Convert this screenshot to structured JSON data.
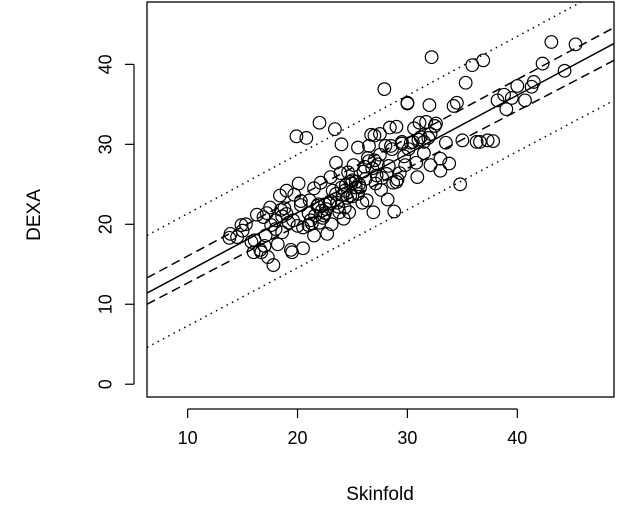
{
  "chart_data": {
    "type": "scatter",
    "title": "",
    "xlabel": "Skinfold",
    "ylabel": "DEXA",
    "xlim": [
      6.3,
      48.8
    ],
    "ylim": [
      -1.6,
      47.8
    ],
    "x_ticks": [
      {
        "value": 10,
        "label": "10"
      },
      {
        "value": 20,
        "label": "20"
      },
      {
        "value": 30,
        "label": "30"
      },
      {
        "value": 40,
        "label": "40"
      }
    ],
    "y_ticks": [
      {
        "value": 0,
        "label": "0"
      },
      {
        "value": 10,
        "label": "10"
      },
      {
        "value": 20,
        "label": "20"
      },
      {
        "value": 30,
        "label": "30"
      },
      {
        "value": 40,
        "label": "40"
      }
    ],
    "grid": false,
    "legend": "none",
    "points": {
      "marker": "open-circle",
      "x": [
        13.9,
        14.5,
        14.9,
        15.3,
        15.8,
        16.1,
        16.3,
        16.6,
        16.9,
        17.1,
        17.3,
        17.5,
        17.6,
        17.8,
        18.0,
        18.2,
        18.4,
        18.6,
        18.8,
        19.0,
        19.2,
        19.4,
        19.6,
        19.9,
        20.1,
        20.3,
        20.5,
        20.8,
        21.0,
        21.1,
        21.3,
        21.5,
        21.6,
        21.8,
        22.0,
        22.1,
        22.3,
        22.5,
        22.7,
        22.9,
        23.0,
        23.2,
        23.4,
        23.5,
        23.7,
        23.9,
        24.0,
        24.1,
        24.3,
        24.4,
        24.6,
        24.7,
        24.8,
        25.0,
        25.1,
        25.3,
        25.5,
        25.7,
        25.9,
        26.1,
        26.3,
        26.5,
        26.7,
        26.9,
        27.1,
        27.3,
        27.5,
        27.7,
        27.9,
        28.2,
        28.4,
        28.6,
        28.8,
        29.0,
        29.3,
        29.5,
        29.8,
        30.0,
        30.3,
        30.6,
        30.9,
        31.2,
        31.5,
        31.9,
        32.2,
        32.6,
        33.0,
        33.5,
        34.2,
        34.8,
        35.3,
        35.9,
        36.6,
        37.3,
        38.2,
        39.0,
        40.0,
        40.7,
        41.5,
        42.3,
        43.1,
        44.3,
        45.3,
        13.8,
        15.0,
        16.0,
        17.0,
        18.0,
        18.5,
        19.0,
        19.5,
        20.0,
        20.5,
        21.0,
        21.5,
        22.0,
        22.5,
        23.0,
        23.5,
        24.0,
        24.5,
        25.0,
        25.5,
        26.0,
        26.5,
        27.0,
        27.5,
        28.0,
        28.5,
        29.0,
        29.5,
        30.0,
        30.5,
        31.0,
        31.5,
        32.0,
        32.5,
        33.0,
        20.3,
        21.2,
        22.4,
        23.1,
        23.8,
        24.2,
        24.9,
        25.3,
        26.2,
        27.2,
        28.1,
        29.1,
        30.1,
        31.1,
        32.1,
        21.9,
        24.3,
        26.8,
        29.7,
        22.6,
        25.6,
        28.7,
        30.8,
        23.6,
        27.6,
        31.7,
        24.8,
        26.4,
        33.8,
        36.3,
        37.8,
        39.5,
        34.5,
        35.0,
        36.9,
        38.8,
        41.3,
        32.1,
        28.3,
        27.0,
        19.7,
        18.6,
        16.7,
        17.2,
        22.2
      ],
      "y": [
        18.8,
        18.4,
        19.9,
        20.0,
        17.8,
        18.0,
        21.2,
        16.8,
        20.9,
        18.6,
        15.9,
        22.1,
        19.9,
        14.9,
        20.5,
        17.5,
        23.6,
        19.0,
        22.0,
        24.2,
        20.2,
        16.8,
        20.5,
        31.0,
        25.1,
        22.9,
        19.6,
        30.8,
        21.4,
        23.0,
        20.1,
        24.5,
        21.1,
        22.3,
        32.7,
        25.2,
        20.8,
        21.4,
        18.8,
        22.6,
        25.9,
        24.2,
        31.9,
        27.7,
        22.2,
        26.4,
        30.0,
        23.7,
        22.1,
        24.9,
        26.5,
        21.5,
        25.3,
        23.5,
        27.4,
        25.3,
        29.6,
        24.6,
        22.7,
        27.2,
        23.0,
        29.8,
        31.2,
        21.5,
        25.1,
        27.5,
        31.3,
        25.8,
        36.9,
        23.1,
        32.1,
        29.4,
        21.6,
        25.3,
        26.4,
        30.3,
        27.4,
        35.2,
        30.2,
        32.0,
        25.9,
        30.9,
        28.9,
        30.8,
        40.9,
        32.6,
        26.7,
        30.2,
        34.8,
        25.0,
        37.7,
        39.9,
        30.3,
        30.5,
        35.5,
        34.4,
        37.3,
        35.5,
        37.8,
        40.1,
        42.8,
        39.2,
        42.5,
        18.3,
        19.2,
        16.5,
        17.3,
        19.4,
        21.8,
        21.3,
        16.5,
        19.8,
        17.0,
        19.9,
        18.6,
        20.2,
        22.5,
        22.9,
        23.8,
        24.6,
        23.3,
        25.5,
        23.8,
        26.6,
        27.9,
        28.0,
        28.7,
        29.8,
        29.8,
        32.2,
        30.1,
        35.1,
        30.3,
        30.6,
        30.3,
        34.9,
        32.3,
        28.2,
        22.4,
        20.5,
        21.1,
        20.0,
        21.5,
        20.7,
        25.1,
        24.6,
        25.7,
        26.1,
        26.3,
        25.6,
        29.4,
        32.7,
        27.4,
        22.5,
        24.2,
        27.0,
        28.5,
        21.9,
        25.0,
        25.2,
        27.7,
        22.7,
        24.3,
        32.8,
        23.6,
        28.3,
        27.6,
        30.3,
        30.4,
        35.8,
        35.2,
        30.5,
        40.5,
        36.2,
        37.2,
        31.3,
        27.3,
        31.1,
        23.7,
        21.0,
        16.5,
        21.4,
        21.7
      ]
    },
    "lines": [
      {
        "style": "solid",
        "points": [
          [
            6.3,
            11.4
          ],
          [
            48.8,
            42.6
          ]
        ]
      },
      {
        "style": "dashed",
        "points": [
          [
            6.3,
            13.3
          ],
          [
            48.8,
            44.6
          ]
        ]
      },
      {
        "style": "dashed",
        "points": [
          [
            6.3,
            10.0
          ],
          [
            48.8,
            40.5
          ]
        ]
      },
      {
        "style": "dotted",
        "points": [
          [
            6.3,
            18.6
          ],
          [
            48.8,
            50.0
          ]
        ]
      },
      {
        "style": "dotted",
        "points": [
          [
            6.3,
            4.6
          ],
          [
            48.8,
            35.5
          ]
        ]
      }
    ]
  }
}
